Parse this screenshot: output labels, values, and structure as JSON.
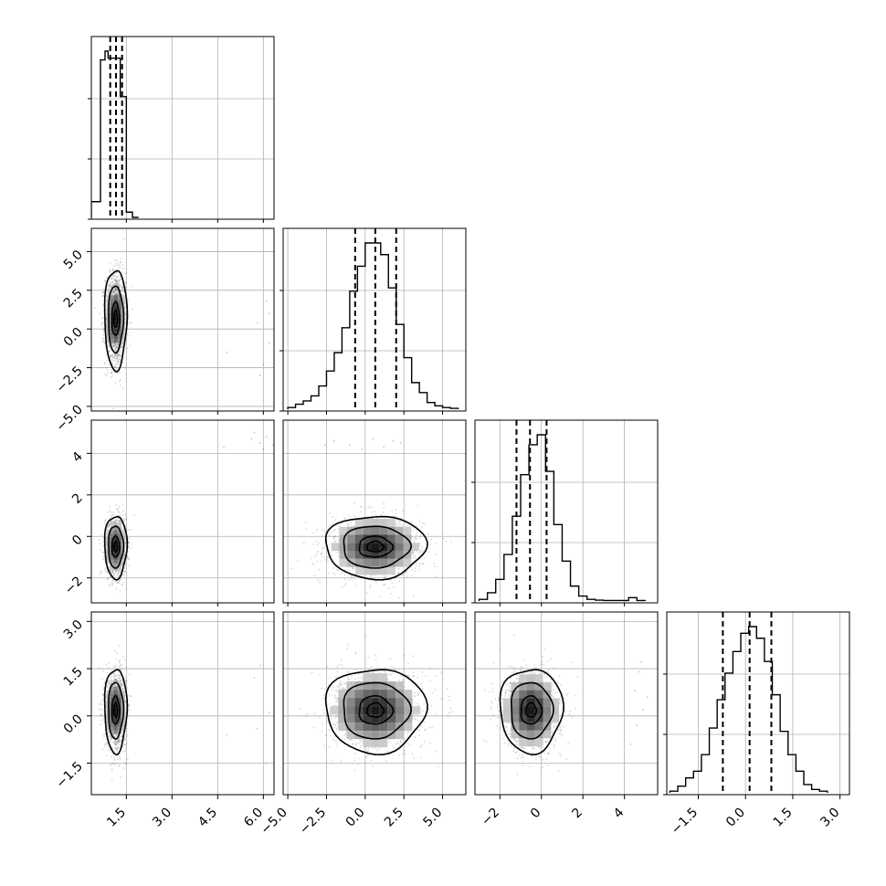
{
  "chart_data": {
    "type": "corner",
    "description_grid": "4x4 lower-triangle corner plot",
    "parameters": [
      {
        "range": [
          0.35,
          6.35
        ],
        "ticks": [
          1.5,
          3.0,
          4.5,
          6.0
        ],
        "tick_labels": [
          "1.5",
          "3.0",
          "4.5",
          "6.0"
        ],
        "quantiles": [
          0.97,
          1.16,
          1.36
        ],
        "histogram": {
          "edges": [
            0.35,
            0.55,
            0.65,
            0.8,
            0.9,
            1.05,
            1.2,
            1.3,
            1.4,
            1.5,
            1.7,
            1.9
          ],
          "counts": [
            0.09,
            0.09,
            0.9,
            0.95,
            0.91,
            0.91,
            0.91,
            0.69,
            0.69,
            0.03,
            0.0
          ]
        }
      },
      {
        "range": [
          -5.3,
          6.5
        ],
        "ticks": [
          -5.0,
          -2.5,
          0.0,
          2.5,
          5.0
        ],
        "tick_labels": [
          "−5.0",
          "−2.5",
          "0.0",
          "2.5",
          "5.0"
        ],
        "quantiles": [
          -0.65,
          0.65,
          2.0
        ],
        "histogram": {
          "edges": [
            -5.0,
            -4.5,
            -4.0,
            -3.5,
            -3.0,
            -2.5,
            -2.0,
            -1.5,
            -1.0,
            -0.5,
            0.0,
            0.5,
            1.0,
            1.5,
            2.0,
            2.5,
            3.0,
            3.5,
            4.0,
            4.5,
            5.0,
            5.5,
            6.0
          ],
          "counts": [
            0.01,
            0.03,
            0.05,
            0.08,
            0.14,
            0.23,
            0.34,
            0.49,
            0.71,
            0.86,
            1.0,
            1.0,
            0.93,
            0.73,
            0.51,
            0.31,
            0.16,
            0.1,
            0.04,
            0.02,
            0.01,
            0.005
          ]
        }
      },
      {
        "range": [
          -3.2,
          5.6
        ],
        "ticks": [
          -2,
          0,
          2,
          4
        ],
        "tick_labels": [
          "−2",
          "0",
          "2",
          "4"
        ],
        "quantiles": [
          -1.2,
          -0.55,
          0.25
        ],
        "histogram": {
          "edges": [
            -3.0,
            -2.6,
            -2.2,
            -1.8,
            -1.4,
            -1.0,
            -0.6,
            -0.2,
            0.2,
            0.6,
            1.0,
            1.4,
            1.8,
            2.2,
            2.6,
            3.0,
            3.4,
            3.8,
            4.2,
            4.6,
            5.0
          ],
          "counts": [
            0.01,
            0.05,
            0.13,
            0.28,
            0.51,
            0.76,
            0.94,
            1.0,
            0.78,
            0.46,
            0.24,
            0.09,
            0.03,
            0.01,
            0.005,
            0.003,
            0.003,
            0.003,
            0.02,
            0.003
          ]
        }
      },
      {
        "range": [
          -2.5,
          3.3
        ],
        "ticks": [
          -1.5,
          0.0,
          1.5,
          3.0
        ],
        "tick_labels": [
          "−1.5",
          "0.0",
          "1.5",
          "3.0"
        ],
        "quantiles": [
          -0.72,
          0.13,
          0.82
        ],
        "histogram": {
          "edges": [
            -2.4,
            -2.15,
            -1.9,
            -1.65,
            -1.4,
            -1.15,
            -0.9,
            -0.65,
            -0.4,
            -0.15,
            0.1,
            0.35,
            0.6,
            0.85,
            1.1,
            1.35,
            1.6,
            1.85,
            2.1,
            2.35,
            2.6
          ],
          "counts": [
            0.01,
            0.04,
            0.09,
            0.13,
            0.23,
            0.39,
            0.56,
            0.72,
            0.85,
            0.96,
            1.0,
            0.93,
            0.79,
            0.59,
            0.37,
            0.23,
            0.13,
            0.05,
            0.02,
            0.01
          ]
        }
      }
    ],
    "two_d": {
      "1_0": {
        "center": [
          1.15,
          0.65
        ],
        "sigma": [
          0.17,
          1.5
        ],
        "contour_levels": [
          0.5,
          1.0,
          2.0,
          3.0
        ],
        "outliers": [
          [
            6.1,
            1.8
          ],
          [
            5.8,
            0.4
          ],
          [
            6.2,
            -0.9
          ],
          [
            4.8,
            -1.5
          ],
          [
            6.0,
            -2.3
          ],
          [
            5.9,
            -3.0
          ],
          [
            6.2,
            1.0
          ]
        ]
      },
      "2_0": {
        "center": [
          1.15,
          -0.5
        ],
        "sigma": [
          0.17,
          0.7
        ],
        "contour_levels": [
          0.5,
          1.0,
          2.0,
          3.0
        ],
        "outliers": [
          [
            5.6,
            4.7
          ],
          [
            5.9,
            4.5
          ],
          [
            6.1,
            4.8
          ],
          [
            6.3,
            4.4
          ],
          [
            4.7,
            4.3
          ],
          [
            5.7,
            5.0
          ],
          [
            6.0,
            4.2
          ]
        ]
      },
      "3_0": {
        "center": [
          1.15,
          0.18
        ],
        "sigma": [
          0.17,
          0.62
        ],
        "contour_levels": [
          0.5,
          1.0,
          2.0,
          3.0
        ],
        "outliers": [
          [
            5.9,
            1.6
          ],
          [
            5.7,
            1.2
          ],
          [
            6.2,
            0.1
          ],
          [
            5.8,
            -0.4
          ],
          [
            6.1,
            -1.5
          ],
          [
            4.8,
            -0.6
          ]
        ]
      },
      "2_1": {
        "center": [
          0.65,
          -0.5
        ],
        "sigma": [
          1.5,
          0.7
        ],
        "contour_levels": [
          0.5,
          1.0,
          2.0,
          3.0
        ],
        "outliers": [
          [
            -2.0,
            4.6
          ],
          [
            -1.0,
            4.4
          ],
          [
            0.5,
            4.7
          ],
          [
            1.2,
            4.3
          ],
          [
            1.8,
            4.6
          ],
          [
            -2.6,
            4.4
          ],
          [
            -0.2,
            4.2
          ],
          [
            2.3,
            4.5
          ]
        ]
      },
      "3_1": {
        "center": [
          0.65,
          0.18
        ],
        "sigma": [
          1.5,
          0.62
        ],
        "contour_levels": [
          0.5,
          1.0,
          2.0,
          3.0
        ],
        "outliers": []
      },
      "3_2": {
        "center": [
          -0.5,
          0.18
        ],
        "sigma": [
          0.7,
          0.62
        ],
        "contour_levels": [
          0.5,
          1.0,
          2.0,
          3.0
        ],
        "outliers": [
          [
            4.7,
            1.4
          ],
          [
            4.5,
            0.8
          ],
          [
            4.9,
            0.2
          ],
          [
            4.6,
            -0.3
          ],
          [
            5.1,
            0.6
          ],
          [
            4.3,
            -0.9
          ],
          [
            4.8,
            1.7
          ]
        ]
      }
    },
    "grid": true,
    "title": "",
    "xlabel": "",
    "ylabel": ""
  }
}
